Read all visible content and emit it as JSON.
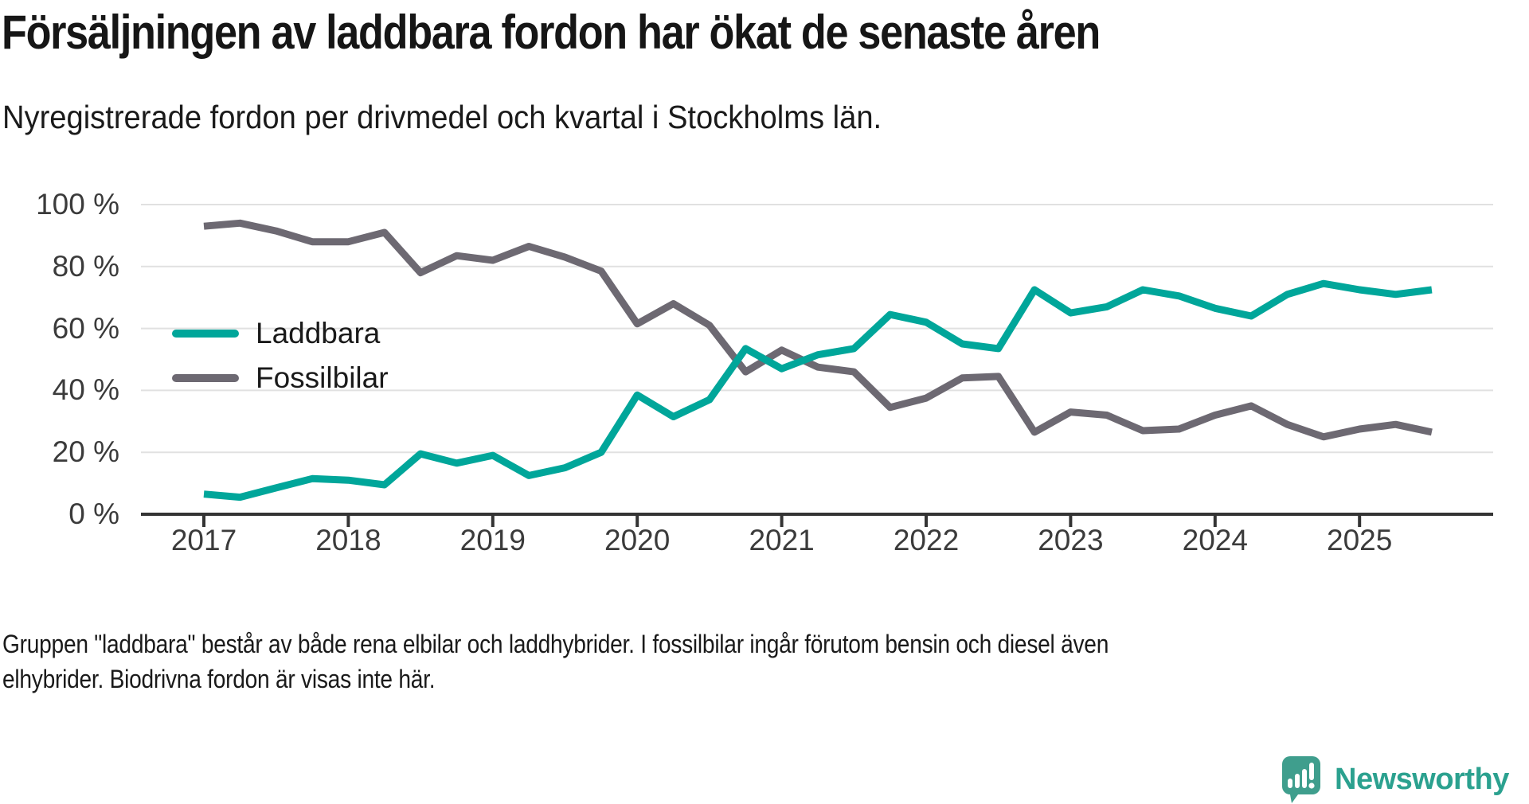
{
  "header": {
    "title": "Försäljningen av laddbara fordon har ökat de senaste åren",
    "subtitle": "Nyregistrerade fordon per drivmedel och kvartal i Stockholms län."
  },
  "chart_data": {
    "type": "line",
    "unit": "%",
    "title": "Försäljningen av laddbara fordon har ökat de senaste åren",
    "subtitle": "Nyregistrerade fordon per drivmedel och kvartal i Stockholms län.",
    "x_quarters": [
      "2017K1",
      "2017K2",
      "2017K3",
      "2017K4",
      "2018K1",
      "2018K2",
      "2018K3",
      "2018K4",
      "2019K1",
      "2019K2",
      "2019K3",
      "2019K4",
      "2020K1",
      "2020K2",
      "2020K3",
      "2020K4",
      "2021K1",
      "2021K2",
      "2021K3",
      "2021K4",
      "2022K1",
      "2022K2",
      "2022K3",
      "2022K4",
      "2023K1",
      "2023K2",
      "2023K3",
      "2023K4",
      "2024K1",
      "2024K2",
      "2024K3",
      "2024K4",
      "2025K1",
      "2025K2",
      "2025K3"
    ],
    "series": [
      {
        "name": "Laddbara",
        "color": "#00a69a",
        "values": [
          6.5,
          5.5,
          8.5,
          11.5,
          11,
          9.5,
          19.5,
          16.5,
          19,
          12.5,
          15,
          20,
          38.5,
          31.5,
          37,
          53.5,
          47,
          51.5,
          53.5,
          64.5,
          62,
          55,
          53.5,
          72.5,
          65,
          67,
          72.5,
          70.5,
          66.5,
          64,
          71,
          74.5,
          72.5,
          71,
          72.5
        ]
      },
      {
        "name": "Fossilbilar",
        "color": "#6d6972",
        "values": [
          93,
          94,
          91.5,
          88,
          88,
          91,
          78,
          83.5,
          82,
          86.5,
          83,
          78.5,
          61.5,
          68,
          61,
          46,
          53,
          47.5,
          46,
          34.5,
          37.5,
          44,
          44.5,
          26.5,
          33,
          32,
          27,
          27.5,
          32,
          35,
          29,
          25,
          27.5,
          29,
          26.5
        ]
      }
    ],
    "ylim": [
      0,
      100
    ],
    "yticks": [
      100,
      80,
      60,
      40,
      20,
      0
    ],
    "ytick_labels": [
      "100 %",
      "80 %",
      "60 %",
      "40 %",
      "20 %",
      "0 %"
    ],
    "xticks": [
      2017,
      2018,
      2019,
      2020,
      2021,
      2022,
      2023,
      2024,
      2025
    ],
    "xtick_labels": [
      "2017",
      "2018",
      "2019",
      "2020",
      "2021",
      "2022",
      "2023",
      "2024",
      "2025"
    ],
    "grid": true,
    "legend_position": "inside-left",
    "colors": {
      "grid": "#e1e1e1",
      "axis": "#343434",
      "tick_text": "#3b3b3b"
    }
  },
  "footer": {
    "lines": [
      "Gruppen \"laddbara\" består av både rena elbilar och laddhybrider. I fossilbilar ingår förutom bensin och diesel även",
      "elhybrider. Biodrivna fordon är visas inte här."
    ]
  },
  "logo": {
    "text": "Newsworthy",
    "text_color": "#2ba18f",
    "icon_color": "#3f9e8d"
  }
}
